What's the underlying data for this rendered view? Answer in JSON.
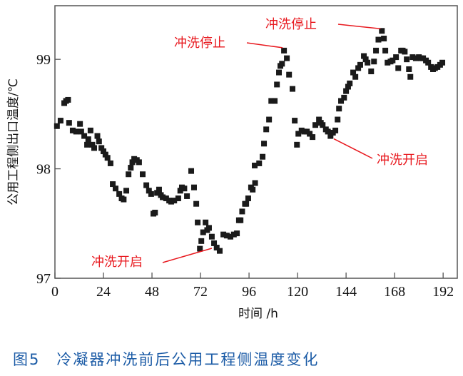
{
  "caption": "图5　冷凝器冲洗前后公用工程侧温度变化",
  "colors": {
    "marker": "#1a1a1a",
    "annotation": "#e8191f",
    "caption": "#1b5ba6",
    "axis": "#555555"
  },
  "chart_data": {
    "type": "scatter",
    "title": "",
    "xlabel": "时间 /h",
    "ylabel": "公用工程侧出口温度/℃",
    "xlim": [
      0,
      199
    ],
    "ylim": [
      97,
      99.49
    ],
    "xticks": [
      0,
      24,
      48,
      72,
      96,
      120,
      144,
      168,
      192
    ],
    "yticks": [
      97,
      98,
      99
    ],
    "grid": false,
    "marker": "square",
    "points": [
      [
        1,
        98.39
      ],
      [
        2.8,
        98.44
      ],
      [
        4.6,
        98.6
      ],
      [
        5.5,
        98.62
      ],
      [
        6.5,
        98.63
      ],
      [
        7,
        98.42
      ],
      [
        8.8,
        98.35
      ],
      [
        10.5,
        98.34
      ],
      [
        12.4,
        98.41
      ],
      [
        13,
        98.34
      ],
      [
        14.5,
        98.3
      ],
      [
        15.9,
        98.22
      ],
      [
        16.5,
        98.27
      ],
      [
        17.6,
        98.35
      ],
      [
        18.5,
        98.22
      ],
      [
        19.4,
        98.19
      ],
      [
        21,
        98.3
      ],
      [
        21.8,
        98.25
      ],
      [
        23,
        98.19
      ],
      [
        24,
        98.16
      ],
      [
        25,
        98.13
      ],
      [
        26,
        98.1
      ],
      [
        27.5,
        98.05
      ],
      [
        28.6,
        97.86
      ],
      [
        30,
        97.82
      ],
      [
        31.8,
        97.77
      ],
      [
        33,
        97.73
      ],
      [
        34,
        97.72
      ],
      [
        35.3,
        97.8
      ],
      [
        36.4,
        97.95
      ],
      [
        37.5,
        98.01
      ],
      [
        38.3,
        98.06
      ],
      [
        39.2,
        98.09
      ],
      [
        40.5,
        98.08
      ],
      [
        41.6,
        98.06
      ],
      [
        43.4,
        97.95
      ],
      [
        45.2,
        97.85
      ],
      [
        46.5,
        97.8
      ],
      [
        47.6,
        97.77
      ],
      [
        48.7,
        97.59
      ],
      [
        49.5,
        97.6
      ],
      [
        50.5,
        97.78
      ],
      [
        51.5,
        97.81
      ],
      [
        52.4,
        97.76
      ],
      [
        53.3,
        97.74
      ],
      [
        55,
        97.73
      ],
      [
        56.5,
        97.71
      ],
      [
        57.5,
        97.7
      ],
      [
        59,
        97.71
      ],
      [
        61,
        97.73
      ],
      [
        62,
        97.8
      ],
      [
        62.8,
        97.83
      ],
      [
        64,
        97.82
      ],
      [
        65.3,
        97.75
      ],
      [
        67.4,
        97.98
      ],
      [
        68.8,
        97.83
      ],
      [
        69.9,
        97.68
      ],
      [
        70.6,
        97.51
      ],
      [
        71.7,
        97.27
      ],
      [
        72.4,
        97.34
      ],
      [
        73.3,
        97.42
      ],
      [
        74.5,
        97.51
      ],
      [
        75.3,
        97.44
      ],
      [
        76.2,
        97.46
      ],
      [
        77.6,
        97.38
      ],
      [
        78.7,
        97.32
      ],
      [
        80,
        97.28
      ],
      [
        81.5,
        97.25
      ],
      [
        83.3,
        97.4
      ],
      [
        85,
        97.39
      ],
      [
        86.8,
        97.38
      ],
      [
        88.5,
        97.4
      ],
      [
        90,
        97.41
      ],
      [
        91,
        97.53
      ],
      [
        91.8,
        97.53
      ],
      [
        92.6,
        97.61
      ],
      [
        94,
        97.68
      ],
      [
        94.6,
        97.68
      ],
      [
        95.6,
        97.73
      ],
      [
        97,
        97.83
      ],
      [
        97.8,
        97.81
      ],
      [
        99,
        97.87
      ],
      [
        98.8,
        98.03
      ],
      [
        101,
        98.05
      ],
      [
        102.7,
        98.11
      ],
      [
        103.4,
        98.23
      ],
      [
        104.5,
        98.36
      ],
      [
        105.9,
        98.45
      ],
      [
        107,
        98.62
      ],
      [
        108.7,
        98.62
      ],
      [
        109.8,
        98.77
      ],
      [
        110.8,
        98.88
      ],
      [
        111.5,
        98.94
      ],
      [
        112.3,
        98.96
      ],
      [
        113.3,
        99.08
      ],
      [
        114.7,
        99.01
      ],
      [
        115.8,
        98.86
      ],
      [
        117.5,
        98.73
      ],
      [
        118.6,
        98.44
      ],
      [
        119.7,
        98.22
      ],
      [
        120.4,
        98.32
      ],
      [
        122,
        98.35
      ],
      [
        123.3,
        98.34
      ],
      [
        124.6,
        98.34
      ],
      [
        126,
        98.32
      ],
      [
        127.4,
        98.29
      ],
      [
        128.8,
        98.4
      ],
      [
        130.6,
        98.45
      ],
      [
        131.5,
        98.42
      ],
      [
        132.4,
        98.4
      ],
      [
        134,
        98.36
      ],
      [
        135,
        98.34
      ],
      [
        136.3,
        98.3
      ],
      [
        137.5,
        98.33
      ],
      [
        138.7,
        98.35
      ],
      [
        139.8,
        98.45
      ],
      [
        140.5,
        98.55
      ],
      [
        141.5,
        98.62
      ],
      [
        143,
        98.65
      ],
      [
        144,
        98.71
      ],
      [
        145,
        98.75
      ],
      [
        145.8,
        98.78
      ],
      [
        147.5,
        98.88
      ],
      [
        148.6,
        98.84
      ],
      [
        150,
        98.92
      ],
      [
        151,
        98.95
      ],
      [
        152.8,
        99.03
      ],
      [
        153.7,
        99.0
      ],
      [
        154.6,
        98.97
      ],
      [
        156.4,
        98.89
      ],
      [
        157.8,
        98.98
      ],
      [
        158.8,
        99.08
      ],
      [
        160,
        99.18
      ],
      [
        161.7,
        99.26
      ],
      [
        162.7,
        99.19
      ],
      [
        163.4,
        99.08
      ],
      [
        164.5,
        98.97
      ],
      [
        166,
        98.98
      ],
      [
        167,
        98.99
      ],
      [
        168.7,
        99.02
      ],
      [
        169.8,
        98.92
      ],
      [
        171.2,
        99.08
      ],
      [
        172,
        99.08
      ],
      [
        173,
        99.07
      ],
      [
        174,
        99.0
      ],
      [
        175.1,
        98.91
      ],
      [
        175.8,
        98.84
      ],
      [
        176.9,
        99.02
      ],
      [
        178.5,
        99.01
      ],
      [
        180,
        99.02
      ],
      [
        181,
        99.01
      ],
      [
        182.1,
        99.01
      ],
      [
        183.5,
        98.99
      ],
      [
        184.6,
        98.97
      ],
      [
        186,
        98.93
      ],
      [
        187,
        98.91
      ],
      [
        188,
        98.92
      ],
      [
        189.2,
        98.93
      ],
      [
        190.5,
        98.95
      ],
      [
        191.6,
        98.97
      ]
    ],
    "annotations": [
      {
        "text": "冲洗停止",
        "target": [
          113.3,
          99.08
        ]
      },
      {
        "text": "冲洗停止",
        "target": [
          161.7,
          99.26
        ]
      },
      {
        "text": "冲洗开启",
        "target": [
          79,
          97.3
        ]
      },
      {
        "text": "冲洗开启",
        "target": [
          139,
          98.3
        ]
      }
    ]
  }
}
